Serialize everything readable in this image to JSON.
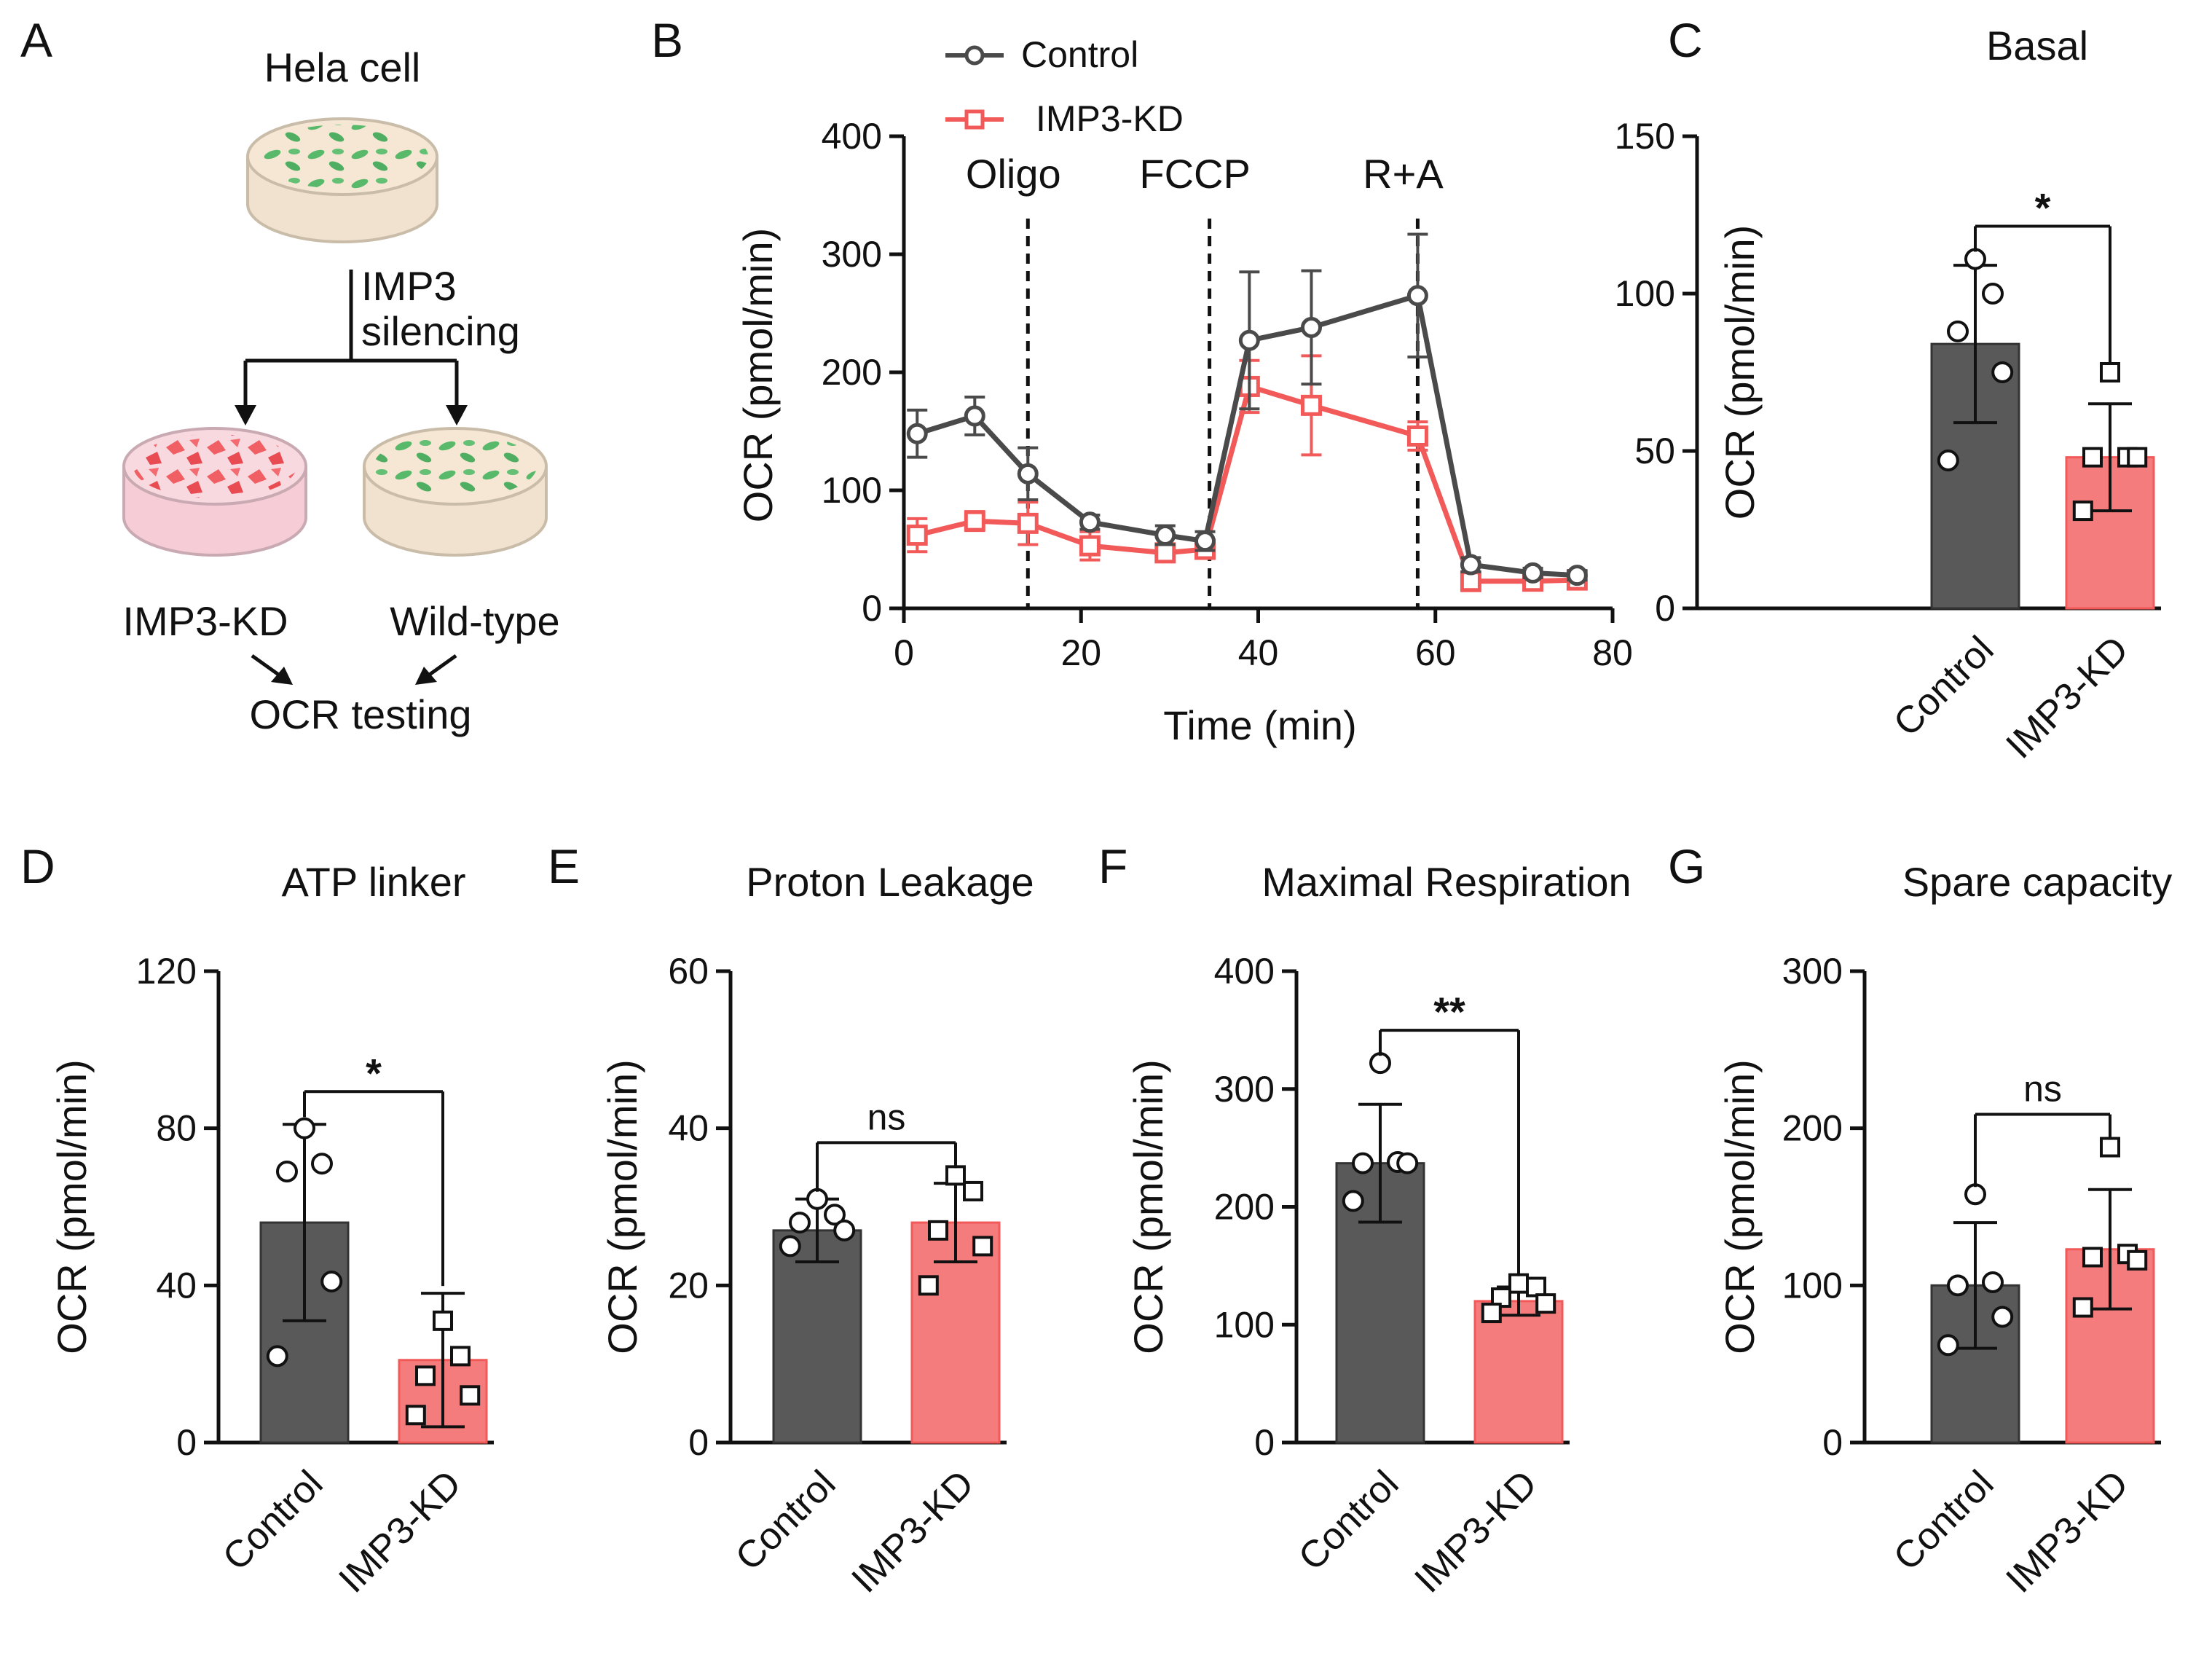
{
  "colors": {
    "control": "#595959",
    "control_line": "#4a4a4a",
    "kd": "#f47c7c",
    "kd_line": "#f25a5a",
    "axis": "#111111"
  },
  "panel_labels": [
    "A",
    "B",
    "C",
    "D",
    "E",
    "F",
    "G"
  ],
  "panel_a": {
    "top_label": "Hela cell",
    "arrow_label_1": "IMP3",
    "arrow_label_2": "silencing",
    "left_label": "IMP3-KD",
    "right_label": "Wild-type",
    "bottom_label": "OCR testing",
    "icons": [
      "culture-dish-wildtype-icon",
      "culture-dish-knockdown-icon"
    ]
  },
  "chart_data": [
    {
      "id": "B",
      "type": "line",
      "title": "",
      "xlabel": "Time (min)",
      "ylabel": "OCR (pmol/min)",
      "xlim": [
        0,
        80
      ],
      "ylim": [
        0,
        400
      ],
      "xticks": [
        0,
        20,
        40,
        60,
        80
      ],
      "yticks": [
        0,
        100,
        200,
        300,
        400
      ],
      "legend": [
        "Control",
        "IMP3-KD"
      ],
      "injections": [
        {
          "label": "Oligo",
          "x": 14
        },
        {
          "label": "FCCP",
          "x": 34.5
        },
        {
          "label": "R+A",
          "x": 58
        }
      ],
      "series": [
        {
          "name": "Control",
          "marker": "circle",
          "x": [
            1.5,
            8,
            14,
            21,
            29.5,
            34,
            39,
            46,
            58,
            64,
            71,
            76
          ],
          "y": [
            148,
            163,
            114,
            73,
            62,
            57,
            227,
            238,
            265,
            37,
            30,
            28
          ],
          "err": [
            20,
            16,
            22,
            6,
            8,
            8,
            58,
            48,
            52,
            6,
            4,
            4
          ]
        },
        {
          "name": "IMP3-KD",
          "marker": "square",
          "x": [
            1.5,
            8,
            14,
            21,
            29.5,
            34,
            39,
            46,
            58,
            64,
            71,
            76
          ],
          "y": [
            62,
            74,
            72,
            53,
            47,
            50,
            188,
            172,
            146,
            23,
            23,
            24
          ],
          "err": [
            14,
            8,
            18,
            12,
            6,
            6,
            22,
            42,
            12,
            8,
            4,
            3
          ]
        }
      ]
    },
    {
      "id": "C",
      "type": "bar",
      "title": "Basal",
      "ylabel": "OCR (pmol/min)",
      "ylim": [
        0,
        150
      ],
      "yticks": [
        0,
        50,
        100,
        150
      ],
      "categories": [
        "Control",
        "IMP3-KD"
      ],
      "values": [
        84,
        48
      ],
      "sd": [
        25,
        17
      ],
      "points": [
        [
          111,
          100,
          88,
          75,
          47
        ],
        [
          75,
          48,
          48,
          48,
          31
        ]
      ],
      "significance": "*"
    },
    {
      "id": "D",
      "type": "bar",
      "title": "ATP linker",
      "ylabel": "OCR (pmol/min)",
      "ylim": [
        0,
        120
      ],
      "yticks": [
        0,
        40,
        80,
        120
      ],
      "categories": [
        "Control",
        "IMP3-KD"
      ],
      "values": [
        56,
        21
      ],
      "sd": [
        25,
        17
      ],
      "points": [
        [
          80,
          71,
          69,
          41,
          22
        ],
        [
          31,
          22,
          17,
          12,
          7
        ]
      ],
      "significance": "*"
    },
    {
      "id": "E",
      "type": "bar",
      "title": "Proton Leakage",
      "ylabel": "OCR (pmol/min)",
      "ylim": [
        0,
        60
      ],
      "yticks": [
        0,
        20,
        40,
        60
      ],
      "categories": [
        "Control",
        "IMP3-KD"
      ],
      "values": [
        27,
        28
      ],
      "sd": [
        4,
        5
      ],
      "points": [
        [
          31,
          29,
          28,
          27,
          25
        ],
        [
          34,
          32,
          27,
          25,
          20
        ]
      ],
      "significance": "ns"
    },
    {
      "id": "F",
      "type": "bar",
      "title": "Maximal Respiration",
      "ylabel": "OCR (pmol/min)",
      "ylim": [
        0,
        400
      ],
      "yticks": [
        0,
        100,
        200,
        300,
        400
      ],
      "categories": [
        "Control",
        "IMP3-KD"
      ],
      "values": [
        237,
        120
      ],
      "sd": [
        50,
        12
      ],
      "points": [
        [
          322,
          238,
          237,
          237,
          205
        ],
        [
          135,
          132,
          123,
          118,
          110
        ]
      ],
      "significance": "**"
    },
    {
      "id": "G",
      "type": "bar",
      "title": "Spare capacity",
      "ylabel": "OCR (pmol/min)",
      "ylim": [
        0,
        300
      ],
      "yticks": [
        0,
        100,
        200,
        300
      ],
      "categories": [
        "Control",
        "IMP3-KD"
      ],
      "values": [
        100,
        123
      ],
      "sd": [
        40,
        38
      ],
      "points": [
        [
          158,
          102,
          100,
          80,
          62
        ],
        [
          188,
          120,
          118,
          116,
          86
        ]
      ],
      "significance": "ns"
    }
  ]
}
